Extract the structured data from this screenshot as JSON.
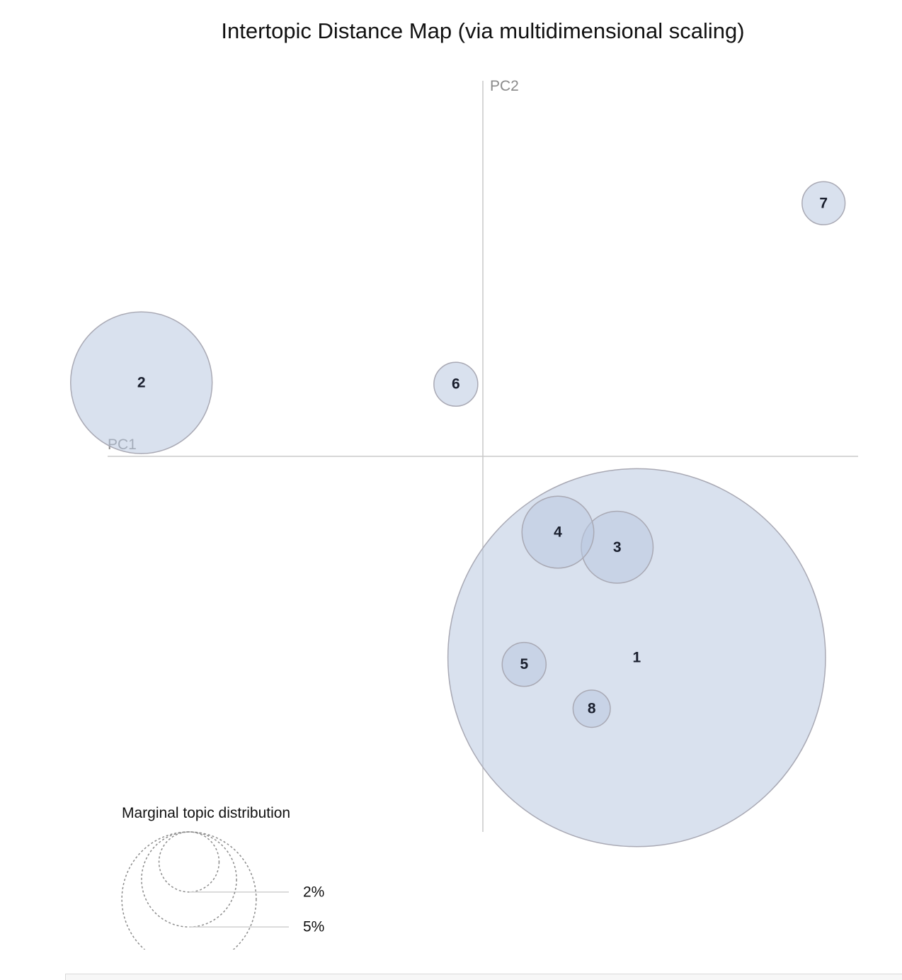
{
  "chart_data": {
    "type": "scatter",
    "title": "Intertopic Distance Map (via multidimensional scaling)",
    "xlabel": "PC1",
    "ylabel": "PC2",
    "xlim": [
      -0.5,
      0.5
    ],
    "ylim": [
      -0.5,
      0.5
    ],
    "topics": [
      {
        "label": "1",
        "x": 0.205,
        "y": -0.268,
        "size_pct": 18.5
      },
      {
        "label": "2",
        "x": -0.455,
        "y": 0.098,
        "size_pct": 2.6
      },
      {
        "label": "3",
        "x": 0.179,
        "y": -0.121,
        "size_pct": 0.67
      },
      {
        "label": "4",
        "x": 0.1,
        "y": -0.101,
        "size_pct": 0.67
      },
      {
        "label": "5",
        "x": 0.055,
        "y": -0.277,
        "size_pct": 0.25
      },
      {
        "label": "6",
        "x": -0.036,
        "y": 0.096,
        "size_pct": 0.25
      },
      {
        "label": "7",
        "x": 0.454,
        "y": 0.337,
        "size_pct": 0.24
      },
      {
        "label": "8",
        "x": 0.145,
        "y": -0.336,
        "size_pct": 0.18
      }
    ]
  },
  "legend": {
    "title": "Marginal topic distribution",
    "entries": [
      {
        "label": "2%",
        "value_pct": 2
      },
      {
        "label": "5%",
        "value_pct": 5
      },
      {
        "label": "",
        "value_pct": 10
      }
    ]
  }
}
